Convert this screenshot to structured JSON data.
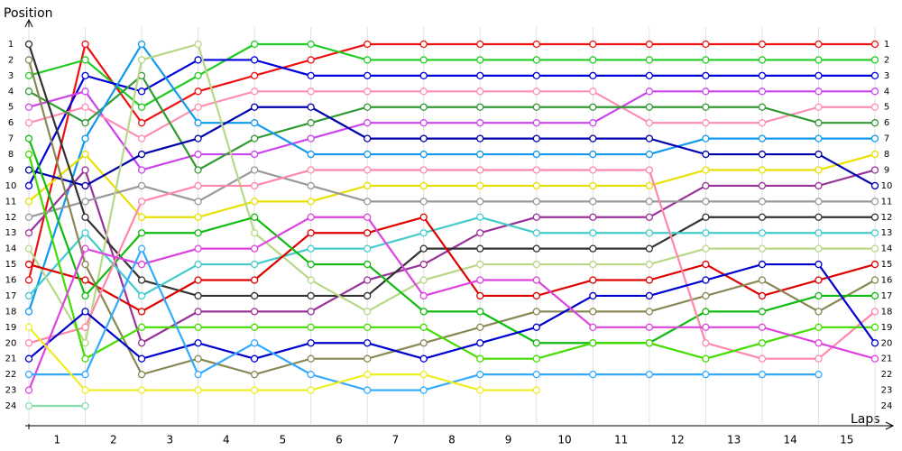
{
  "chart_data": {
    "type": "line",
    "y_label": "Position",
    "x_label": "Laps",
    "x": [
      0,
      1,
      2,
      3,
      4,
      5,
      6,
      7,
      8,
      9,
      10,
      11,
      12,
      13,
      14,
      15
    ],
    "xlim": [
      0,
      15
    ],
    "xticks": [
      {
        "value": 0.5,
        "label": "1"
      },
      {
        "value": 1.5,
        "label": "2"
      },
      {
        "value": 2.5,
        "label": "3"
      },
      {
        "value": 3.5,
        "label": "4"
      },
      {
        "value": 4.5,
        "label": "5"
      },
      {
        "value": 5.5,
        "label": "6"
      },
      {
        "value": 6.5,
        "label": "7"
      },
      {
        "value": 7.5,
        "label": "8"
      },
      {
        "value": 8.5,
        "label": "9"
      },
      {
        "value": 9.5,
        "label": "10"
      },
      {
        "value": 10.5,
        "label": "11"
      },
      {
        "value": 11.5,
        "label": "12"
      },
      {
        "value": 12.5,
        "label": "13"
      },
      {
        "value": 13.5,
        "label": "14"
      },
      {
        "value": 14.5,
        "label": "15"
      }
    ],
    "ylim": [
      1,
      24
    ],
    "y_reversed": true,
    "yticks": [
      1,
      2,
      3,
      4,
      5,
      6,
      7,
      8,
      9,
      10,
      11,
      12,
      13,
      14,
      15,
      16,
      17,
      18,
      19,
      20,
      21,
      22,
      23,
      24
    ],
    "grid": true,
    "series": [
      {
        "color": "#ee1111",
        "values": [
          16,
          1,
          6,
          4,
          3,
          2,
          1,
          1,
          1,
          1,
          1,
          1,
          1,
          1,
          1,
          1
        ]
      },
      {
        "color": "#22cc22",
        "values": [
          3,
          2,
          5,
          3,
          1,
          1,
          2,
          2,
          2,
          2,
          2,
          2,
          2,
          2,
          2,
          2
        ]
      },
      {
        "color": "#0000dd",
        "values": [
          10,
          3,
          4,
          2,
          2,
          3,
          3,
          3,
          3,
          3,
          3,
          3,
          3,
          3,
          3,
          3
        ]
      },
      {
        "color": "#cc44ee",
        "values": [
          5,
          4,
          9,
          8,
          8,
          7,
          6,
          6,
          6,
          6,
          6,
          4,
          4,
          4,
          4,
          4
        ]
      },
      {
        "color": "#ff8fb0",
        "values": [
          6,
          5,
          7,
          5,
          4,
          4,
          4,
          4,
          4,
          4,
          4,
          6,
          6,
          6,
          5,
          5
        ]
      },
      {
        "color": "#339933",
        "values": [
          4,
          6,
          3,
          9,
          7,
          6,
          5,
          5,
          5,
          5,
          5,
          5,
          5,
          5,
          6,
          6
        ]
      },
      {
        "color": "#1199ee",
        "values": [
          18,
          7,
          1,
          6,
          6,
          8,
          8,
          8,
          8,
          8,
          8,
          8,
          7,
          7,
          7,
          7
        ]
      },
      {
        "color": "#e8e000",
        "values": [
          11,
          8,
          12,
          12,
          11,
          11,
          10,
          10,
          10,
          10,
          10,
          10,
          9,
          9,
          9,
          8
        ]
      },
      {
        "color": "#993399",
        "values": [
          13,
          9,
          20,
          18,
          18,
          18,
          16,
          15,
          13,
          12,
          12,
          12,
          10,
          10,
          10,
          9
        ]
      },
      {
        "color": "#0000aa",
        "values": [
          9,
          10,
          8,
          7,
          5,
          5,
          7,
          7,
          7,
          7,
          7,
          7,
          8,
          8,
          8,
          10
        ]
      },
      {
        "color": "#999999",
        "values": [
          12,
          11,
          10,
          11,
          9,
          10,
          11,
          11,
          11,
          11,
          11,
          11,
          11,
          11,
          11,
          11
        ]
      },
      {
        "color": "#333333",
        "values": [
          1,
          12,
          16,
          17,
          17,
          17,
          17,
          14,
          14,
          14,
          14,
          14,
          12,
          12,
          12,
          12
        ]
      },
      {
        "color": "#44cccc",
        "values": [
          17,
          13,
          17,
          15,
          15,
          14,
          14,
          13,
          12,
          13,
          13,
          13,
          13,
          13,
          13,
          13
        ]
      },
      {
        "color": "#b8d888",
        "values": [
          14,
          20,
          2,
          1,
          13,
          16,
          18,
          16,
          15,
          15,
          15,
          15,
          14,
          14,
          14,
          14
        ]
      },
      {
        "color": "#dd0000",
        "values": [
          15,
          16,
          18,
          16,
          16,
          13,
          13,
          12,
          17,
          17,
          16,
          16,
          15,
          17,
          16,
          15
        ]
      },
      {
        "color": "#888855",
        "values": [
          2,
          15,
          22,
          21,
          22,
          21,
          21,
          20,
          19,
          18,
          18,
          18,
          17,
          16,
          18,
          16
        ]
      },
      {
        "color": "#11bb11",
        "values": [
          7,
          17,
          13,
          13,
          12,
          15,
          15,
          18,
          18,
          20,
          20,
          20,
          18,
          18,
          17,
          17
        ]
      },
      {
        "color": "#ff88aa",
        "values": [
          20,
          19,
          11,
          10,
          10,
          9,
          9,
          9,
          9,
          9,
          9,
          9,
          20,
          21,
          21,
          18
        ]
      },
      {
        "color": "#44dd00",
        "values": [
          8,
          21,
          19,
          19,
          19,
          19,
          19,
          19,
          21,
          21,
          20,
          20,
          21,
          20,
          19,
          19
        ]
      },
      {
        "color": "#0000cc",
        "values": [
          21,
          18,
          21,
          20,
          21,
          20,
          20,
          21,
          20,
          19,
          17,
          17,
          16,
          15,
          15,
          20
        ]
      },
      {
        "color": "#dd44dd",
        "values": [
          23,
          14,
          15,
          14,
          14,
          12,
          12,
          17,
          16,
          16,
          19,
          19,
          19,
          19,
          20,
          21
        ]
      },
      {
        "color": "#33aaff",
        "values": [
          22,
          22,
          14,
          22,
          20,
          22,
          23,
          23,
          22,
          22,
          22,
          22,
          22,
          22,
          22,
          null
        ]
      },
      {
        "color": "#eeee22",
        "values": [
          19,
          23,
          23,
          23,
          23,
          23,
          22,
          22,
          23,
          23,
          null,
          null,
          null,
          null,
          null,
          null
        ]
      },
      {
        "color": "#88ddaa",
        "values": [
          24,
          24,
          null,
          null,
          null,
          null,
          null,
          null,
          null,
          null,
          null,
          null,
          null,
          null,
          null,
          null
        ]
      }
    ]
  }
}
